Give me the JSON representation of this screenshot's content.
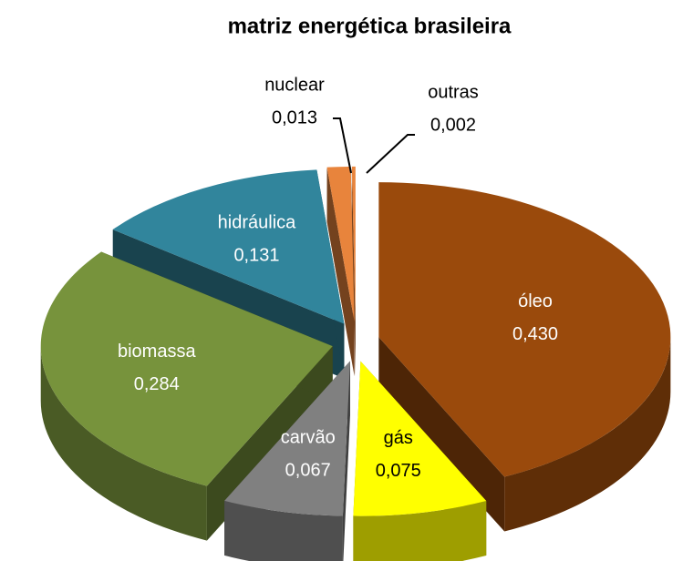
{
  "chart_data": {
    "type": "pie",
    "title": "matriz energética brasileira",
    "categories": [
      "óleo",
      "gás",
      "carvão",
      "biomassa",
      "hidráulica",
      "nuclear",
      "outras"
    ],
    "values": [
      0.43,
      0.075,
      0.067,
      0.284,
      0.131,
      0.013,
      0.002
    ],
    "value_labels": [
      "0,430",
      "0,075",
      "0,067",
      "0,284",
      "0,131",
      "0,013",
      "0,002"
    ],
    "colors": [
      "#9a4a0c",
      "#ffff00",
      "#808080",
      "#77933c",
      "#31859c",
      "#e8843c",
      "#e8843c"
    ]
  }
}
